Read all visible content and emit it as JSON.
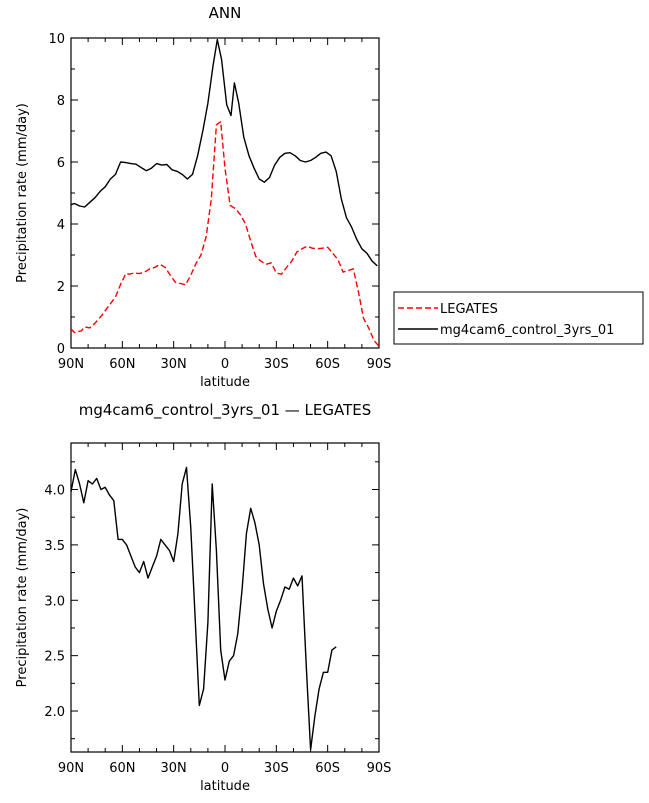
{
  "chart_data": [
    {
      "type": "line",
      "title": "ANN",
      "xlabel": "latitude",
      "ylabel": "Precipitation rate (mm/day)",
      "xticks": [
        "90N",
        "60N",
        "30N",
        "0",
        "30S",
        "60S",
        "90S"
      ],
      "yticks": [
        "0",
        "2",
        "4",
        "6",
        "8",
        "10"
      ],
      "xlim": [
        90,
        -90
      ],
      "ylim": [
        0,
        10
      ],
      "legend": {
        "placement": "right",
        "entries": [
          "LEGATES",
          "mg4cam6_control_3yrs_01"
        ]
      },
      "series": [
        {
          "name": "LEGATES",
          "style": "dashed",
          "color": "#ff0000",
          "points": [
            [
              90,
              0.62
            ],
            [
              88,
              0.5
            ],
            [
              84,
              0.55
            ],
            [
              82,
              0.68
            ],
            [
              79,
              0.65
            ],
            [
              76,
              0.8
            ],
            [
              72,
              1.05
            ],
            [
              68,
              1.35
            ],
            [
              64,
              1.65
            ],
            [
              61,
              2.05
            ],
            [
              58,
              2.4
            ],
            [
              56,
              2.38
            ],
            [
              53,
              2.42
            ],
            [
              50,
              2.4
            ],
            [
              47,
              2.45
            ],
            [
              44,
              2.55
            ],
            [
              41,
              2.6
            ],
            [
              38,
              2.7
            ],
            [
              35,
              2.6
            ],
            [
              32,
              2.35
            ],
            [
              29,
              2.12
            ],
            [
              26,
              2.08
            ],
            [
              23,
              2.04
            ],
            [
              20,
              2.35
            ],
            [
              17,
              2.72
            ],
            [
              14,
              3.0
            ],
            [
              11,
              3.6
            ],
            [
              8,
              4.8
            ],
            [
              5,
              7.2
            ],
            [
              2.5,
              7.3
            ],
            [
              0,
              5.8
            ],
            [
              -3,
              4.6
            ],
            [
              -6,
              4.5
            ],
            [
              -9,
              4.3
            ],
            [
              -12,
              4.0
            ],
            [
              -15,
              3.45
            ],
            [
              -18,
              2.95
            ],
            [
              -21,
              2.8
            ],
            [
              -24,
              2.7
            ],
            [
              -27,
              2.75
            ],
            [
              -30,
              2.42
            ],
            [
              -33,
              2.38
            ],
            [
              -36,
              2.6
            ],
            [
              -39,
              2.8
            ],
            [
              -42,
              3.1
            ],
            [
              -45,
              3.2
            ],
            [
              -48,
              3.28
            ],
            [
              -51,
              3.22
            ],
            [
              -54,
              3.2
            ],
            [
              -57,
              3.22
            ],
            [
              -60,
              3.25
            ],
            [
              -63,
              3.05
            ],
            [
              -66,
              2.85
            ],
            [
              -69,
              2.45
            ],
            [
              -72,
              2.5
            ],
            [
              -75,
              2.55
            ],
            [
              -78,
              1.8
            ],
            [
              -81,
              0.95
            ],
            [
              -84,
              0.65
            ],
            [
              -87,
              0.25
            ],
            [
              -90,
              0.05
            ]
          ]
        },
        {
          "name": "mg4cam6_control_3yrs_01",
          "style": "solid",
          "color": "#000000",
          "points": [
            [
              90,
              4.62
            ],
            [
              88,
              4.66
            ],
            [
              85,
              4.58
            ],
            [
              82,
              4.55
            ],
            [
              79,
              4.7
            ],
            [
              76,
              4.85
            ],
            [
              73,
              5.05
            ],
            [
              70,
              5.2
            ],
            [
              67,
              5.45
            ],
            [
              64,
              5.6
            ],
            [
              61,
              6.0
            ],
            [
              58,
              5.98
            ],
            [
              55,
              5.95
            ],
            [
              52,
              5.93
            ],
            [
              49,
              5.82
            ],
            [
              46,
              5.72
            ],
            [
              43,
              5.8
            ],
            [
              40,
              5.95
            ],
            [
              37,
              5.9
            ],
            [
              34,
              5.92
            ],
            [
              31,
              5.75
            ],
            [
              28,
              5.7
            ],
            [
              25,
              5.6
            ],
            [
              22,
              5.45
            ],
            [
              19,
              5.6
            ],
            [
              16,
              6.2
            ],
            [
              13,
              7.0
            ],
            [
              10,
              7.9
            ],
            [
              7,
              9.1
            ],
            [
              4.5,
              9.95
            ],
            [
              2,
              9.3
            ],
            [
              -1,
              7.85
            ],
            [
              -3.5,
              7.5
            ],
            [
              -5.5,
              8.55
            ],
            [
              -8,
              7.9
            ],
            [
              -11,
              6.8
            ],
            [
              -14,
              6.2
            ],
            [
              -17,
              5.8
            ],
            [
              -20,
              5.45
            ],
            [
              -23,
              5.35
            ],
            [
              -26,
              5.5
            ],
            [
              -29,
              5.9
            ],
            [
              -32,
              6.15
            ],
            [
              -35,
              6.28
            ],
            [
              -38,
              6.3
            ],
            [
              -41,
              6.2
            ],
            [
              -44,
              6.05
            ],
            [
              -47,
              6.0
            ],
            [
              -50,
              6.05
            ],
            [
              -53,
              6.15
            ],
            [
              -56,
              6.28
            ],
            [
              -59,
              6.32
            ],
            [
              -62,
              6.2
            ],
            [
              -65,
              5.7
            ],
            [
              -68,
              4.8
            ],
            [
              -71,
              4.2
            ],
            [
              -74,
              3.9
            ],
            [
              -77,
              3.5
            ],
            [
              -80,
              3.2
            ],
            [
              -83,
              3.05
            ],
            [
              -86,
              2.8
            ],
            [
              -89,
              2.65
            ]
          ]
        }
      ]
    },
    {
      "type": "line",
      "title": "mg4cam6_control_3yrs_01 — LEGATES",
      "xlabel": "latitude",
      "ylabel": "Precipitation rate (mm/day)",
      "xticks": [
        "90N",
        "60N",
        "30N",
        "0",
        "30S",
        "60S",
        "90S"
      ],
      "yticks": [
        "2.0",
        "2.5",
        "3.0",
        "3.5",
        "4.0"
      ],
      "xlim": [
        90,
        -90
      ],
      "ylim": [
        1.63,
        4.42
      ],
      "series": [
        {
          "style": "solid",
          "color": "#000000",
          "points": [
            [
              90,
              3.98
            ],
            [
              87.5,
              4.18
            ],
            [
              85,
              4.05
            ],
            [
              82.5,
              3.88
            ],
            [
              80,
              4.08
            ],
            [
              77.5,
              4.05
            ],
            [
              75,
              4.1
            ],
            [
              72.5,
              4.0
            ],
            [
              70,
              4.02
            ],
            [
              67.5,
              3.95
            ],
            [
              65,
              3.9
            ],
            [
              62.5,
              3.55
            ],
            [
              60,
              3.55
            ],
            [
              57.5,
              3.5
            ],
            [
              55,
              3.4
            ],
            [
              52.5,
              3.3
            ],
            [
              50,
              3.25
            ],
            [
              47.5,
              3.35
            ],
            [
              45,
              3.2
            ],
            [
              42.5,
              3.3
            ],
            [
              40,
              3.4
            ],
            [
              37.5,
              3.55
            ],
            [
              35,
              3.5
            ],
            [
              32.5,
              3.45
            ],
            [
              30,
              3.35
            ],
            [
              27.5,
              3.6
            ],
            [
              25,
              4.05
            ],
            [
              22.5,
              4.2
            ],
            [
              20,
              3.65
            ],
            [
              17.5,
              2.85
            ],
            [
              15,
              2.05
            ],
            [
              12.5,
              2.2
            ],
            [
              10,
              2.8
            ],
            [
              7.5,
              4.05
            ],
            [
              5,
              3.45
            ],
            [
              2.5,
              2.55
            ],
            [
              0,
              2.28
            ],
            [
              -2.5,
              2.45
            ],
            [
              -5,
              2.5
            ],
            [
              -7.5,
              2.7
            ],
            [
              -10,
              3.1
            ],
            [
              -12.5,
              3.6
            ],
            [
              -15,
              3.83
            ],
            [
              -17.5,
              3.7
            ],
            [
              -20,
              3.5
            ],
            [
              -22.5,
              3.15
            ],
            [
              -25,
              2.92
            ],
            [
              -27.5,
              2.75
            ],
            [
              -30,
              2.9
            ],
            [
              -32.5,
              3.0
            ],
            [
              -35,
              3.12
            ],
            [
              -37.5,
              3.1
            ],
            [
              -40,
              3.2
            ],
            [
              -42.5,
              3.13
            ],
            [
              -45,
              3.22
            ],
            [
              -47.5,
              2.4
            ],
            [
              -50,
              1.65
            ],
            [
              -52.5,
              1.95
            ],
            [
              -55,
              2.2
            ],
            [
              -57.5,
              2.35
            ],
            [
              -60,
              2.35
            ],
            [
              -62.5,
              2.55
            ],
            [
              -65,
              2.58
            ]
          ]
        }
      ]
    }
  ]
}
